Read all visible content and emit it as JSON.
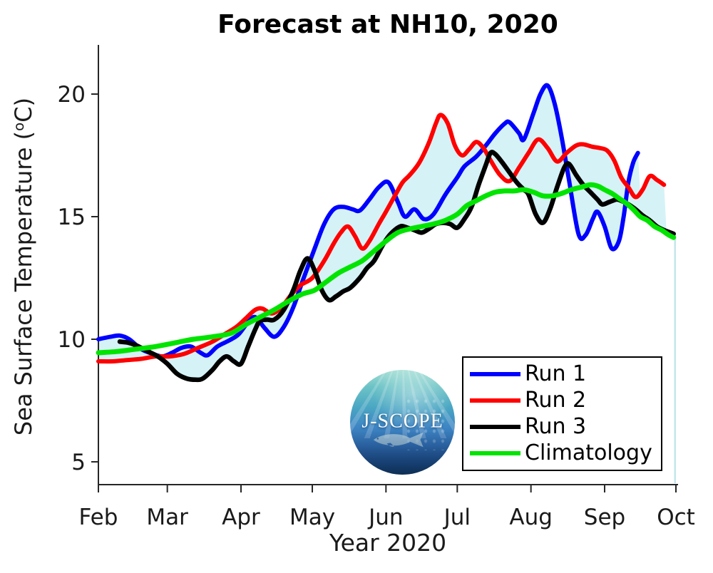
{
  "title": "Forecast at NH10, 2020",
  "axes": {
    "ylabel_prefix": "Sea Surface Temperature (",
    "ylabel_sup": "o",
    "ylabel_suffix": "C)",
    "xlabel": "Year 2020"
  },
  "legend": {
    "items": [
      {
        "label": "Run 1",
        "color": "#0000ff"
      },
      {
        "label": "Run 2",
        "color": "#ff0000"
      },
      {
        "label": "Run 3",
        "color": "#000000"
      },
      {
        "label": "Climatology",
        "color": "#00e400"
      }
    ]
  },
  "logo": {
    "text": "J-SCOPE"
  },
  "chart_data": {
    "type": "line",
    "title": "Forecast at NH10, 2020",
    "xlabel": "Year 2020",
    "ylabel": "Sea Surface Temperature (°C)",
    "x_unit": "days since Feb 1, 2020",
    "x_tick_labels": [
      "Feb",
      "Mar",
      "Apr",
      "May",
      "Jun",
      "Jul",
      "Aug",
      "Sep",
      "Oct"
    ],
    "x_tick_days": [
      0,
      29,
      60,
      90,
      121,
      151,
      182,
      213,
      243
    ],
    "xlim_days": [
      0,
      243
    ],
    "yticks": [
      5,
      10,
      15,
      20
    ],
    "ylim": [
      4.1,
      22.0
    ],
    "grid": false,
    "legend_position": "lower right inside",
    "band": {
      "name": "spread between Runs 1-3",
      "color": "#d5f2f7",
      "edge_day": 242.6,
      "edge_top_value": 14.25,
      "edge_color": "#c2e6ea"
    },
    "series": [
      {
        "name": "Run 1",
        "color": "#0000ff",
        "in_envelope": true,
        "points": [
          [
            0,
            10.0
          ],
          [
            5,
            10.1
          ],
          [
            9,
            10.15
          ],
          [
            13,
            10.0
          ],
          [
            18,
            9.6
          ],
          [
            23,
            9.4
          ],
          [
            27,
            9.3
          ],
          [
            31,
            9.45
          ],
          [
            35,
            9.65
          ],
          [
            39,
            9.7
          ],
          [
            43,
            9.45
          ],
          [
            46,
            9.35
          ],
          [
            50,
            9.7
          ],
          [
            55,
            9.95
          ],
          [
            59,
            10.2
          ],
          [
            63,
            10.7
          ],
          [
            66,
            10.9
          ],
          [
            70,
            10.45
          ],
          [
            74,
            10.1
          ],
          [
            78,
            10.5
          ],
          [
            82,
            11.3
          ],
          [
            86,
            12.4
          ],
          [
            91,
            13.7
          ],
          [
            95,
            14.7
          ],
          [
            99,
            15.3
          ],
          [
            103,
            15.4
          ],
          [
            107,
            15.3
          ],
          [
            110,
            15.25
          ],
          [
            114,
            15.7
          ],
          [
            118,
            16.2
          ],
          [
            122,
            16.4
          ],
          [
            126,
            15.6
          ],
          [
            129,
            15.0
          ],
          [
            133,
            15.3
          ],
          [
            137,
            14.9
          ],
          [
            141,
            15.1
          ],
          [
            146,
            15.9
          ],
          [
            151,
            16.6
          ],
          [
            154,
            17.05
          ],
          [
            159,
            17.45
          ],
          [
            163,
            17.9
          ],
          [
            167,
            18.4
          ],
          [
            171,
            18.8
          ],
          [
            173,
            18.85
          ],
          [
            177,
            18.4
          ],
          [
            179,
            18.15
          ],
          [
            183,
            19.2
          ],
          [
            186,
            20.0
          ],
          [
            189,
            20.35
          ],
          [
            192,
            19.6
          ],
          [
            195,
            18.2
          ],
          [
            198,
            16.5
          ],
          [
            202,
            14.3
          ],
          [
            205,
            14.25
          ],
          [
            208,
            14.9
          ],
          [
            210,
            15.2
          ],
          [
            213,
            14.6
          ],
          [
            216,
            13.7
          ],
          [
            219,
            14.0
          ],
          [
            221,
            15.0
          ],
          [
            223,
            16.4
          ],
          [
            225,
            17.2
          ],
          [
            227,
            17.6
          ]
        ]
      },
      {
        "name": "Run 2",
        "color": "#ff0000",
        "in_envelope": true,
        "points": [
          [
            0,
            9.1
          ],
          [
            6,
            9.1
          ],
          [
            12,
            9.15
          ],
          [
            18,
            9.2
          ],
          [
            24,
            9.3
          ],
          [
            30,
            9.3
          ],
          [
            36,
            9.4
          ],
          [
            42,
            9.65
          ],
          [
            48,
            9.9
          ],
          [
            53,
            10.2
          ],
          [
            58,
            10.5
          ],
          [
            62,
            10.85
          ],
          [
            66,
            11.2
          ],
          [
            69,
            11.25
          ],
          [
            73,
            11.05
          ],
          [
            77,
            11.3
          ],
          [
            81,
            11.8
          ],
          [
            85,
            12.2
          ],
          [
            90,
            12.5
          ],
          [
            95,
            13.2
          ],
          [
            99,
            13.9
          ],
          [
            102,
            14.35
          ],
          [
            105,
            14.6
          ],
          [
            108,
            14.2
          ],
          [
            111,
            13.7
          ],
          [
            114,
            14.0
          ],
          [
            118,
            14.7
          ],
          [
            121,
            15.2
          ],
          [
            125,
            15.9
          ],
          [
            128,
            16.4
          ],
          [
            131,
            16.7
          ],
          [
            135,
            17.2
          ],
          [
            139,
            18.0
          ],
          [
            142,
            18.8
          ],
          [
            144,
            19.15
          ],
          [
            147,
            18.8
          ],
          [
            150,
            17.9
          ],
          [
            153,
            17.5
          ],
          [
            156,
            17.75
          ],
          [
            159,
            18.05
          ],
          [
            162,
            17.8
          ],
          [
            165,
            17.3
          ],
          [
            169,
            16.7
          ],
          [
            173,
            16.45
          ],
          [
            177,
            17.0
          ],
          [
            181,
            17.6
          ],
          [
            185,
            18.15
          ],
          [
            189,
            17.8
          ],
          [
            193,
            17.25
          ],
          [
            197,
            17.6
          ],
          [
            201,
            17.9
          ],
          [
            204,
            17.95
          ],
          [
            208,
            17.85
          ],
          [
            211,
            17.8
          ],
          [
            214,
            17.7
          ],
          [
            217,
            17.3
          ],
          [
            220,
            16.6
          ],
          [
            223,
            16.2
          ],
          [
            226,
            15.8
          ],
          [
            229,
            16.1
          ],
          [
            232,
            16.65
          ],
          [
            235,
            16.5
          ],
          [
            238,
            16.3
          ]
        ]
      },
      {
        "name": "Run 3",
        "color": "#000000",
        "in_envelope": true,
        "points": [
          [
            9,
            9.9
          ],
          [
            13,
            9.85
          ],
          [
            17,
            9.7
          ],
          [
            21,
            9.5
          ],
          [
            25,
            9.3
          ],
          [
            29,
            9.0
          ],
          [
            33,
            8.6
          ],
          [
            37,
            8.4
          ],
          [
            41,
            8.35
          ],
          [
            44,
            8.4
          ],
          [
            48,
            8.75
          ],
          [
            51,
            9.1
          ],
          [
            54,
            9.3
          ],
          [
            57,
            9.1
          ],
          [
            60,
            9.0
          ],
          [
            63,
            9.7
          ],
          [
            66,
            10.4
          ],
          [
            68,
            10.75
          ],
          [
            71,
            10.8
          ],
          [
            74,
            10.8
          ],
          [
            78,
            11.2
          ],
          [
            82,
            12.0
          ],
          [
            85,
            12.8
          ],
          [
            88,
            13.3
          ],
          [
            91,
            12.8
          ],
          [
            94,
            12.0
          ],
          [
            97,
            11.6
          ],
          [
            100,
            11.75
          ],
          [
            103,
            11.95
          ],
          [
            106,
            12.1
          ],
          [
            110,
            12.5
          ],
          [
            113,
            12.9
          ],
          [
            116,
            13.2
          ],
          [
            120,
            13.9
          ],
          [
            123,
            14.3
          ],
          [
            127,
            14.6
          ],
          [
            130,
            14.55
          ],
          [
            133,
            14.45
          ],
          [
            136,
            14.35
          ],
          [
            139,
            14.5
          ],
          [
            142,
            14.7
          ],
          [
            145,
            14.75
          ],
          [
            148,
            14.7
          ],
          [
            151,
            14.55
          ],
          [
            154,
            14.9
          ],
          [
            157,
            15.4
          ],
          [
            160,
            16.3
          ],
          [
            163,
            17.1
          ],
          [
            165,
            17.6
          ],
          [
            167,
            17.55
          ],
          [
            170,
            17.2
          ],
          [
            173,
            16.8
          ],
          [
            176,
            16.4
          ],
          [
            179,
            16.1
          ],
          [
            181,
            15.9
          ],
          [
            184,
            15.1
          ],
          [
            187,
            14.75
          ],
          [
            190,
            15.3
          ],
          [
            193,
            16.2
          ],
          [
            196,
            17.0
          ],
          [
            198,
            17.15
          ],
          [
            201,
            16.7
          ],
          [
            204,
            16.3
          ],
          [
            207,
            16.0
          ],
          [
            210,
            15.7
          ],
          [
            212,
            15.5
          ],
          [
            215,
            15.6
          ],
          [
            218,
            15.7
          ],
          [
            220,
            15.65
          ],
          [
            223,
            15.5
          ],
          [
            226,
            15.3
          ],
          [
            229,
            15.05
          ],
          [
            232,
            14.85
          ],
          [
            235,
            14.6
          ],
          [
            238,
            14.45
          ],
          [
            242,
            14.3
          ]
        ]
      },
      {
        "name": "Climatology",
        "color": "#00e400",
        "in_envelope": false,
        "points": [
          [
            0,
            9.45
          ],
          [
            8,
            9.5
          ],
          [
            16,
            9.6
          ],
          [
            24,
            9.7
          ],
          [
            32,
            9.85
          ],
          [
            40,
            10.0
          ],
          [
            48,
            10.1
          ],
          [
            56,
            10.25
          ],
          [
            62,
            10.6
          ],
          [
            68,
            10.9
          ],
          [
            74,
            11.2
          ],
          [
            80,
            11.55
          ],
          [
            86,
            11.85
          ],
          [
            91,
            12.0
          ],
          [
            96,
            12.35
          ],
          [
            101,
            12.7
          ],
          [
            106,
            12.95
          ],
          [
            111,
            13.2
          ],
          [
            116,
            13.6
          ],
          [
            121,
            14.0
          ],
          [
            126,
            14.35
          ],
          [
            131,
            14.5
          ],
          [
            136,
            14.6
          ],
          [
            141,
            14.7
          ],
          [
            146,
            14.85
          ],
          [
            151,
            15.1
          ],
          [
            155,
            15.45
          ],
          [
            159,
            15.65
          ],
          [
            163,
            15.85
          ],
          [
            167,
            16.0
          ],
          [
            171,
            16.05
          ],
          [
            175,
            16.05
          ],
          [
            179,
            16.1
          ],
          [
            183,
            16.0
          ],
          [
            187,
            15.85
          ],
          [
            191,
            15.85
          ],
          [
            195,
            15.95
          ],
          [
            199,
            16.1
          ],
          [
            203,
            16.2
          ],
          [
            207,
            16.3
          ],
          [
            210,
            16.25
          ],
          [
            213,
            16.1
          ],
          [
            216,
            15.95
          ],
          [
            219,
            15.75
          ],
          [
            222,
            15.55
          ],
          [
            225,
            15.3
          ],
          [
            228,
            15.0
          ],
          [
            231,
            14.85
          ],
          [
            234,
            14.6
          ],
          [
            237,
            14.45
          ],
          [
            240,
            14.25
          ],
          [
            242,
            14.15
          ]
        ]
      }
    ]
  }
}
